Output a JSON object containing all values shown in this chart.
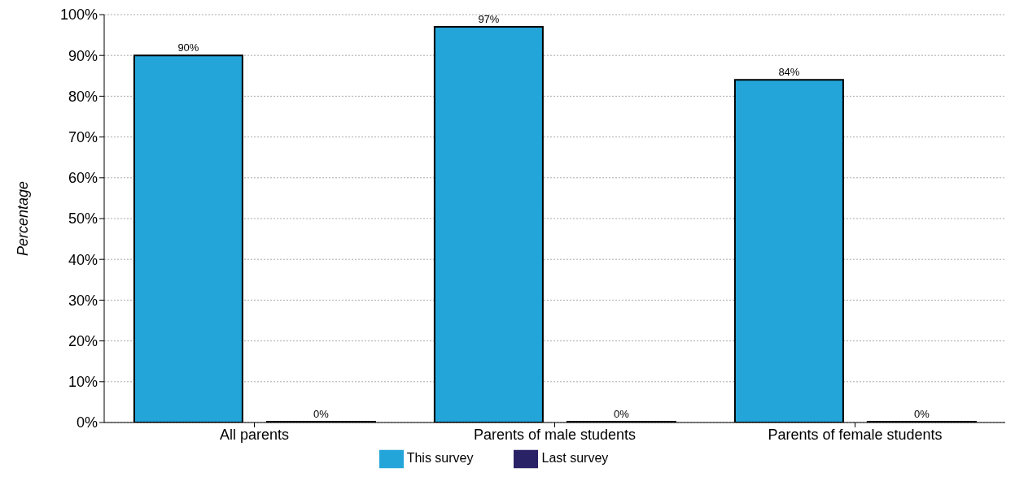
{
  "chart_data": {
    "type": "bar",
    "ylabel": "Percentage",
    "categories": [
      "All parents",
      "Parents of male students",
      "Parents of female students"
    ],
    "series": [
      {
        "name": "This survey",
        "color": "#23a5d9",
        "values": [
          90,
          97,
          84
        ],
        "value_labels": [
          "90%",
          "97%",
          "84%"
        ]
      },
      {
        "name": "Last survey",
        "color": "#2a2266",
        "values": [
          0,
          0,
          0
        ],
        "value_labels": [
          "0%",
          "0%",
          "0%"
        ]
      }
    ],
    "ylim": [
      0,
      100
    ],
    "yticks": [
      {
        "value": 0,
        "label": "0%"
      },
      {
        "value": 10,
        "label": "10%"
      },
      {
        "value": 20,
        "label": "20%"
      },
      {
        "value": 30,
        "label": "30%"
      },
      {
        "value": 40,
        "label": "40%"
      },
      {
        "value": 50,
        "label": "50%"
      },
      {
        "value": 60,
        "label": "60%"
      },
      {
        "value": 70,
        "label": "70%"
      },
      {
        "value": 80,
        "label": "80%"
      },
      {
        "value": 90,
        "label": "90%"
      },
      {
        "value": 100,
        "label": "100%"
      }
    ],
    "grid": "y",
    "legend": "bottom"
  }
}
